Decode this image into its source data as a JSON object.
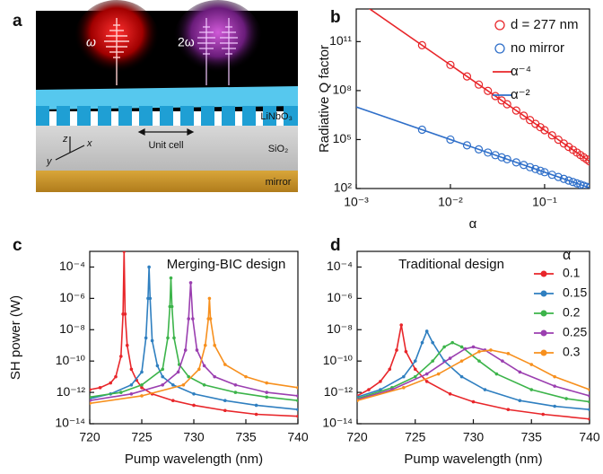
{
  "schematic": {
    "panel_label": "a",
    "omega": "ω",
    "two_omega": "2ω",
    "layer_top": "LiNbO₃",
    "unit_cell": "Unit cell",
    "layer_middle": "SiO₂",
    "layer_bottom": "mirror",
    "axis_z": "z",
    "axis_x": "x",
    "axis_y": "y"
  },
  "chart_data": [
    {
      "type": "scatter",
      "panel_label": "b",
      "xlabel": "α",
      "ylabel": "Radiative Q factor",
      "xscale": "log",
      "yscale": "log",
      "xlim": [
        0.001,
        0.3
      ],
      "ylim": [
        100,
        10000000000000.0
      ],
      "xticks": [
        {
          "value": 0.001,
          "label": "10⁻³"
        },
        {
          "value": 0.01,
          "label": "10⁻²"
        },
        {
          "value": 0.1,
          "label": "10⁻¹"
        }
      ],
      "yticks": [
        {
          "value": 100,
          "label": "10²"
        },
        {
          "value": 100000,
          "label": "10⁵"
        },
        {
          "value": 100000000,
          "label": "10⁸"
        },
        {
          "value": 100000000000,
          "label": "10¹¹"
        }
      ],
      "legend": "upper right",
      "series": [
        {
          "name": "d = 277 nm",
          "color": "#e8262a",
          "type": "scatter",
          "x": [
            0.005,
            0.01,
            0.015,
            0.02,
            0.025,
            0.03,
            0.035,
            0.04,
            0.05,
            0.06,
            0.07,
            0.08,
            0.09,
            0.1,
            0.12,
            0.14,
            0.16,
            0.18,
            0.2,
            0.22,
            0.24,
            0.26,
            0.28,
            0.3
          ],
          "values": [
            60000000000.0,
            3750000000.0,
            741000000.0,
            234000000.0,
            96000000.0,
            46300000.0,
            25000000.0,
            14600000.0,
            6000000.0,
            2890000.0,
            1560000.0,
            916000.0,
            572000.0,
            375000.0,
            181000.0,
            97600.0,
            57200.0,
            35700.0,
            23400.0,
            16000.0,
            11300.0,
            8210,
            6100,
            4630
          ]
        },
        {
          "name": "no mirror",
          "color": "#2f6fc9",
          "type": "scatter",
          "x": [
            0.005,
            0.01,
            0.015,
            0.02,
            0.025,
            0.03,
            0.035,
            0.04,
            0.05,
            0.06,
            0.07,
            0.08,
            0.09,
            0.1,
            0.12,
            0.14,
            0.16,
            0.18,
            0.2,
            0.22,
            0.24,
            0.26,
            0.28,
            0.3
          ],
          "values": [
            400000.0,
            100000.0,
            44400.0,
            25000.0,
            16000.0,
            11100.0,
            8160,
            6250,
            4000,
            2780,
            2040,
            1560,
            1230,
            1000,
            694,
            510,
            391,
            309,
            250,
            207,
            174,
            148,
            128,
            111
          ]
        },
        {
          "name": "α⁻⁴",
          "color": "#e8262a",
          "type": "line",
          "x": [
            0.001,
            0.3
          ],
          "values": [
            37500000000000.0,
            4630
          ]
        },
        {
          "name": "α⁻²",
          "color": "#2f6fc9",
          "type": "line",
          "x": [
            0.001,
            0.3
          ],
          "values": [
            10000000.0,
            111
          ]
        }
      ]
    },
    {
      "type": "line",
      "panel_label": "c",
      "xlabel": "Pump wavelength (nm)",
      "ylabel": "SH power (W)",
      "annotation": "Merging-BIC design",
      "yscale": "log",
      "xlim": [
        720,
        740
      ],
      "ylim": [
        1e-14,
        0.001
      ],
      "xticks": [
        720,
        725,
        730,
        735,
        740
      ],
      "yticks": [
        {
          "value": 1e-14,
          "label": "10⁻¹⁴"
        },
        {
          "value": 1e-12,
          "label": "10⁻¹²"
        },
        {
          "value": 1e-10,
          "label": "10⁻¹⁰"
        },
        {
          "value": 1e-08,
          "label": "10⁻⁸"
        },
        {
          "value": 1e-06,
          "label": "10⁻⁶"
        },
        {
          "value": 0.0001,
          "label": "10⁻⁴"
        }
      ],
      "series": [
        {
          "color": "#e8262a",
          "x": [
            720,
            721,
            722,
            722.5,
            723,
            723.2,
            723.3,
            723.4,
            723.6,
            724,
            724.5,
            725,
            726,
            728,
            730,
            733,
            736,
            740
          ],
          "values": [
            1.5e-12,
            2e-12,
            4e-12,
            1e-11,
            2e-10,
            1e-07,
            0.001,
            1e-07,
            1e-09,
            3e-11,
            6e-12,
            2e-12,
            8e-13,
            3e-13,
            1.5e-13,
            7e-14,
            4e-14,
            3e-14
          ]
        },
        {
          "color": "#2f7fc0",
          "x": [
            720,
            722,
            724,
            725,
            725.4,
            725.6,
            725.7,
            725.8,
            726,
            726.5,
            727,
            728,
            730,
            733,
            736,
            740
          ],
          "values": [
            4e-13,
            8e-13,
            3e-12,
            2e-11,
            3e-09,
            1e-06,
            0.0001,
            1e-06,
            2e-09,
            5e-11,
            1e-11,
            3e-12,
            8e-13,
            3e-13,
            1.5e-13,
            8e-14
          ]
        },
        {
          "color": "#3cb44a",
          "x": [
            720,
            723,
            725,
            727,
            727.5,
            727.7,
            727.8,
            727.9,
            728.1,
            728.6,
            729.5,
            731,
            734,
            737,
            740
          ],
          "values": [
            5e-13,
            1e-12,
            3e-12,
            3e-11,
            3e-09,
            3e-07,
            2e-05,
            3e-07,
            3e-09,
            6e-11,
            1e-11,
            3e-12,
            1e-12,
            5e-13,
            3e-13
          ]
        },
        {
          "color": "#9b3fb0",
          "x": [
            720,
            724,
            727,
            728.5,
            729.2,
            729.5,
            729.7,
            729.9,
            730.3,
            731,
            732,
            734,
            737,
            740
          ],
          "values": [
            3e-13,
            8e-13,
            3e-12,
            2e-11,
            5e-10,
            5e-08,
            1e-05,
            5e-08,
            5e-10,
            5e-11,
            1e-11,
            3e-12,
            1e-12,
            6e-13
          ]
        },
        {
          "color": "#f7901e",
          "x": [
            720,
            725,
            729,
            730.5,
            731.1,
            731.4,
            731.5,
            731.6,
            732,
            733,
            735,
            737,
            740
          ],
          "values": [
            2e-13,
            6e-13,
            3e-12,
            3e-11,
            1e-09,
            5e-08,
            1e-06,
            5e-08,
            1e-09,
            6e-11,
            1e-11,
            4e-12,
            2e-12
          ]
        }
      ]
    },
    {
      "type": "line",
      "panel_label": "d",
      "xlabel": "Pump wavelength (nm)",
      "annotation": "Traditional design",
      "yscale": "log",
      "xlim": [
        720,
        740
      ],
      "ylim": [
        1e-14,
        0.001
      ],
      "xticks": [
        720,
        725,
        730,
        735,
        740
      ],
      "yticks": [
        {
          "value": 1e-14,
          "label": "10⁻¹⁴"
        },
        {
          "value": 1e-12,
          "label": "10⁻¹²"
        },
        {
          "value": 1e-10,
          "label": "10⁻¹⁰"
        },
        {
          "value": 1e-08,
          "label": "10⁻⁸"
        },
        {
          "value": 1e-06,
          "label": "10⁻⁶"
        },
        {
          "value": 0.0001,
          "label": "10⁻⁴"
        }
      ],
      "legend": "upper right",
      "legend_title": "α",
      "series": [
        {
          "name": "0.1",
          "color": "#e8262a",
          "x": [
            720,
            721,
            722,
            722.8,
            723.4,
            723.8,
            724.2,
            725,
            726,
            728,
            730,
            733,
            736,
            740
          ],
          "values": [
            6e-13,
            1.5e-12,
            5e-12,
            3e-11,
            5e-10,
            2e-08,
            4e-10,
            3e-11,
            5e-12,
            8e-13,
            2.5e-13,
            8e-14,
            4e-14,
            2e-14
          ]
        },
        {
          "name": "0.15",
          "color": "#2f7fc0",
          "x": [
            720,
            722,
            724,
            725,
            725.6,
            726,
            726.5,
            727.5,
            729,
            731,
            734,
            737,
            740
          ],
          "values": [
            5e-13,
            1.5e-12,
            1e-11,
            1e-10,
            1.5e-09,
            8e-09,
            1.5e-09,
            1e-10,
            1e-11,
            1.5e-12,
            3e-13,
            1.3e-13,
            8e-14
          ]
        },
        {
          "name": "0.2",
          "color": "#3cb44a",
          "x": [
            720,
            723,
            725,
            726.5,
            727.5,
            728.2,
            729,
            730.5,
            732,
            735,
            738,
            740
          ],
          "values": [
            4e-13,
            2e-12,
            1e-11,
            1e-10,
            8e-10,
            1.5e-09,
            8e-10,
            1e-10,
            1.5e-11,
            1.5e-12,
            4e-13,
            2.5e-13
          ]
        },
        {
          "name": "0.25",
          "color": "#9b3fb0",
          "x": [
            720,
            723,
            726,
            728,
            729.3,
            730,
            731,
            732.5,
            734,
            737,
            740
          ],
          "values": [
            3.5e-13,
            1.5e-12,
            1.5e-11,
            1.5e-10,
            6e-10,
            8e-10,
            5e-10,
            1e-10,
            2e-11,
            2.5e-12,
            6e-13
          ]
        },
        {
          "name": "0.3",
          "color": "#f7901e",
          "x": [
            720,
            724,
            727,
            729,
            730.5,
            731.5,
            733,
            735,
            737,
            740
          ],
          "values": [
            3e-13,
            2e-12,
            1.5e-11,
            1e-10,
            4e-10,
            5e-10,
            3e-10,
            6e-11,
            1e-11,
            1.5e-12
          ]
        }
      ]
    }
  ]
}
